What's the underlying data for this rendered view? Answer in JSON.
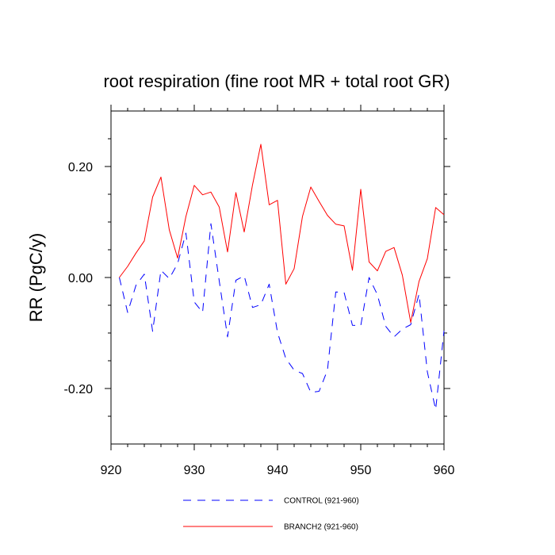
{
  "chart_data": {
    "type": "line",
    "title": "root respiration (fine root MR + total root GR)",
    "ylabel": "RR  (PgC/y)",
    "xlabel": "",
    "xlim": [
      920,
      960
    ],
    "ylim": [
      -0.3,
      0.3
    ],
    "xticks": [
      920,
      930,
      940,
      950,
      960
    ],
    "xtick_labels": [
      "920",
      "930",
      "940",
      "950",
      "960"
    ],
    "yticks": [
      -0.2,
      0.0,
      0.2
    ],
    "ytick_labels": [
      "-0.20",
      "0.00",
      "0.20"
    ],
    "grid": false,
    "legend_position": "bottom",
    "x": [
      921,
      922,
      923,
      924,
      925,
      926,
      927,
      928,
      929,
      930,
      931,
      932,
      933,
      934,
      935,
      936,
      937,
      938,
      939,
      940,
      941,
      942,
      943,
      944,
      945,
      946,
      947,
      948,
      949,
      950,
      951,
      952,
      953,
      954,
      955,
      956,
      957,
      958,
      959,
      960
    ],
    "series": [
      {
        "name": "CONTROL (921-960)",
        "color": "#0000ff",
        "style": "dashed",
        "values": [
          0.0,
          -0.063,
          -0.014,
          0.006,
          -0.097,
          0.013,
          -0.002,
          0.025,
          0.08,
          -0.044,
          -0.063,
          0.097,
          -0.006,
          -0.107,
          -0.005,
          0.003,
          -0.054,
          -0.049,
          -0.012,
          -0.099,
          -0.146,
          -0.167,
          -0.173,
          -0.207,
          -0.205,
          -0.167,
          -0.026,
          -0.027,
          -0.086,
          -0.087,
          0.0,
          -0.031,
          -0.088,
          -0.107,
          -0.093,
          -0.085,
          -0.03,
          -0.17,
          -0.238,
          -0.096
        ]
      },
      {
        "name": "BRANCH2 (921-960)",
        "color": "#ff0000",
        "style": "solid",
        "values": [
          0.0,
          0.02,
          0.044,
          0.066,
          0.145,
          0.181,
          0.086,
          0.035,
          0.11,
          0.166,
          0.149,
          0.154,
          0.127,
          0.046,
          0.153,
          0.082,
          0.167,
          0.24,
          0.131,
          0.139,
          -0.012,
          0.016,
          0.11,
          0.163,
          0.137,
          0.112,
          0.096,
          0.093,
          0.013,
          0.159,
          0.028,
          0.012,
          0.047,
          0.054,
          0.004,
          -0.081,
          -0.007,
          0.034,
          0.126,
          0.113
        ]
      }
    ]
  }
}
